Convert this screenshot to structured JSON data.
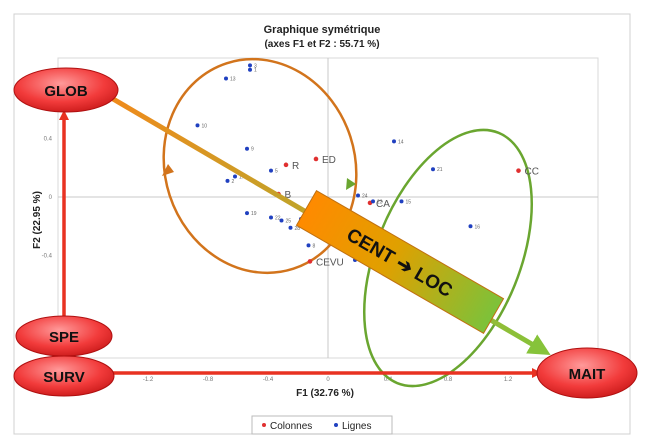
{
  "chart_data": {
    "type": "scatter",
    "title": "Graphique symétrique",
    "subtitle": "(axes F1 et F2 : 55.71 %)",
    "xlabel": "F1 (32.76 %)",
    "ylabel": "F2 (22.95 %)",
    "xlim": [
      -1.8,
      1.8
    ],
    "ylim": [
      -1.1,
      0.95
    ],
    "x_ticks": [
      "-1.2",
      "-0.8",
      "-0.4",
      "0",
      "0.4",
      "0.8",
      "1.2"
    ],
    "y_ticks": [
      "0.8",
      "0.4",
      "0",
      "-0.4"
    ],
    "legend_position": "bottom",
    "legend": [
      "Colonnes",
      "Lignes"
    ],
    "series": [
      {
        "name": "Colonnes",
        "color": "#e03030",
        "points": [
          {
            "label": "R",
            "x": -0.28,
            "y": 0.22
          },
          {
            "label": "ED",
            "x": -0.08,
            "y": 0.26
          },
          {
            "label": "B",
            "x": -0.33,
            "y": 0.02
          },
          {
            "label": "CA",
            "x": 0.28,
            "y": -0.04
          },
          {
            "label": "CS",
            "x": 0.12,
            "y": -0.29
          },
          {
            "label": "CEVU",
            "x": -0.12,
            "y": -0.44
          },
          {
            "label": "CC",
            "x": 1.27,
            "y": 0.18
          }
        ]
      },
      {
        "name": "Lignes",
        "color": "#2040c0",
        "points": [
          {
            "label": "1",
            "x": -0.52,
            "y": 0.87
          },
          {
            "label": "13",
            "x": -0.68,
            "y": 0.81
          },
          {
            "label": "3",
            "x": -0.52,
            "y": 0.9
          },
          {
            "label": "10",
            "x": -0.87,
            "y": 0.49
          },
          {
            "label": "9",
            "x": -0.54,
            "y": 0.33
          },
          {
            "label": "17",
            "x": -0.62,
            "y": 0.14
          },
          {
            "label": "2",
            "x": -0.67,
            "y": 0.11
          },
          {
            "label": "5",
            "x": -0.38,
            "y": 0.18
          },
          {
            "label": "14",
            "x": 0.44,
            "y": 0.38
          },
          {
            "label": "21",
            "x": 0.7,
            "y": 0.19
          },
          {
            "label": "24",
            "x": 0.2,
            "y": 0.01
          },
          {
            "label": "23",
            "x": 0.3,
            "y": -0.03
          },
          {
            "label": "15",
            "x": 0.49,
            "y": -0.03
          },
          {
            "label": "16",
            "x": 0.95,
            "y": -0.2
          },
          {
            "label": "19",
            "x": -0.54,
            "y": -0.11
          },
          {
            "label": "22",
            "x": -0.38,
            "y": -0.14
          },
          {
            "label": "25",
            "x": -0.31,
            "y": -0.16
          },
          {
            "label": "28",
            "x": -0.25,
            "y": -0.21
          },
          {
            "label": "8",
            "x": -0.13,
            "y": -0.33
          },
          {
            "label": "18",
            "x": 0.18,
            "y": -0.43
          },
          {
            "label": "6",
            "x": -0.18,
            "y": -0.15
          }
        ]
      }
    ]
  },
  "overlay": {
    "glob": "GLOB",
    "spe": "SPE",
    "surv": "SURV",
    "mait": "MAIT",
    "banner": "CENT ➔ LOC"
  }
}
